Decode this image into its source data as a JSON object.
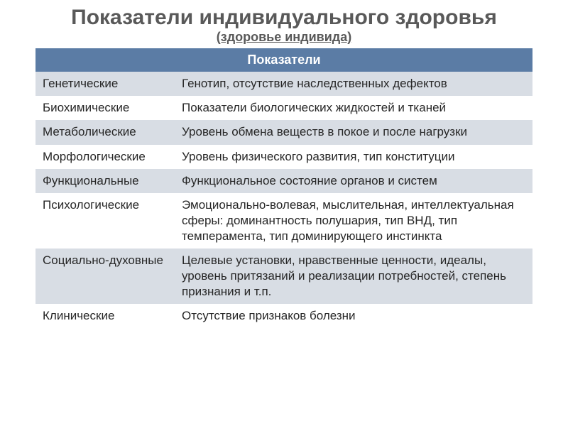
{
  "title": {
    "main": "Показатели индивидуального здоровья",
    "sub": "(здоровье индивида)",
    "main_fontsize": 30,
    "sub_fontsize": 18,
    "color": "#595959"
  },
  "table": {
    "header_label": "Показатели",
    "header_bg": "#5b7ca5",
    "header_fg": "#ffffff",
    "header_fontsize": 18,
    "row_bg_alt": "#d8dde4",
    "row_bg_plain": "#ffffff",
    "body_fontsize": 17,
    "text_color": "#262626",
    "rows": [
      {
        "name": "Генетические",
        "desc": "Генотип, отсутствие наследственных дефектов"
      },
      {
        "name": "Биохимические",
        "desc": "Показатели биологических жидкостей и тканей"
      },
      {
        "name": "Метаболические",
        "desc": "Уровень обмена веществ в покое и после нагрузки"
      },
      {
        "name": "Морфологические",
        "desc": "Уровень физического развития, тип конституции"
      },
      {
        "name": "Функциональные",
        "desc": "Функциональное состояние органов и систем"
      },
      {
        "name": "Психологические",
        "desc": "Эмоционально-волевая, мыслительная, интеллектуальная сферы: доминантность полушария, тип ВНД, тип темперамента, тип доминирующего инстинкта"
      },
      {
        "name": "Социально-духовные",
        "desc": "Целевые установки, нравственные ценности, идеалы, уровень притязаний и реализации потребностей, степень признания и т.п."
      },
      {
        "name": "Клинические",
        "desc": "Отсутствие признаков болезни"
      }
    ]
  }
}
